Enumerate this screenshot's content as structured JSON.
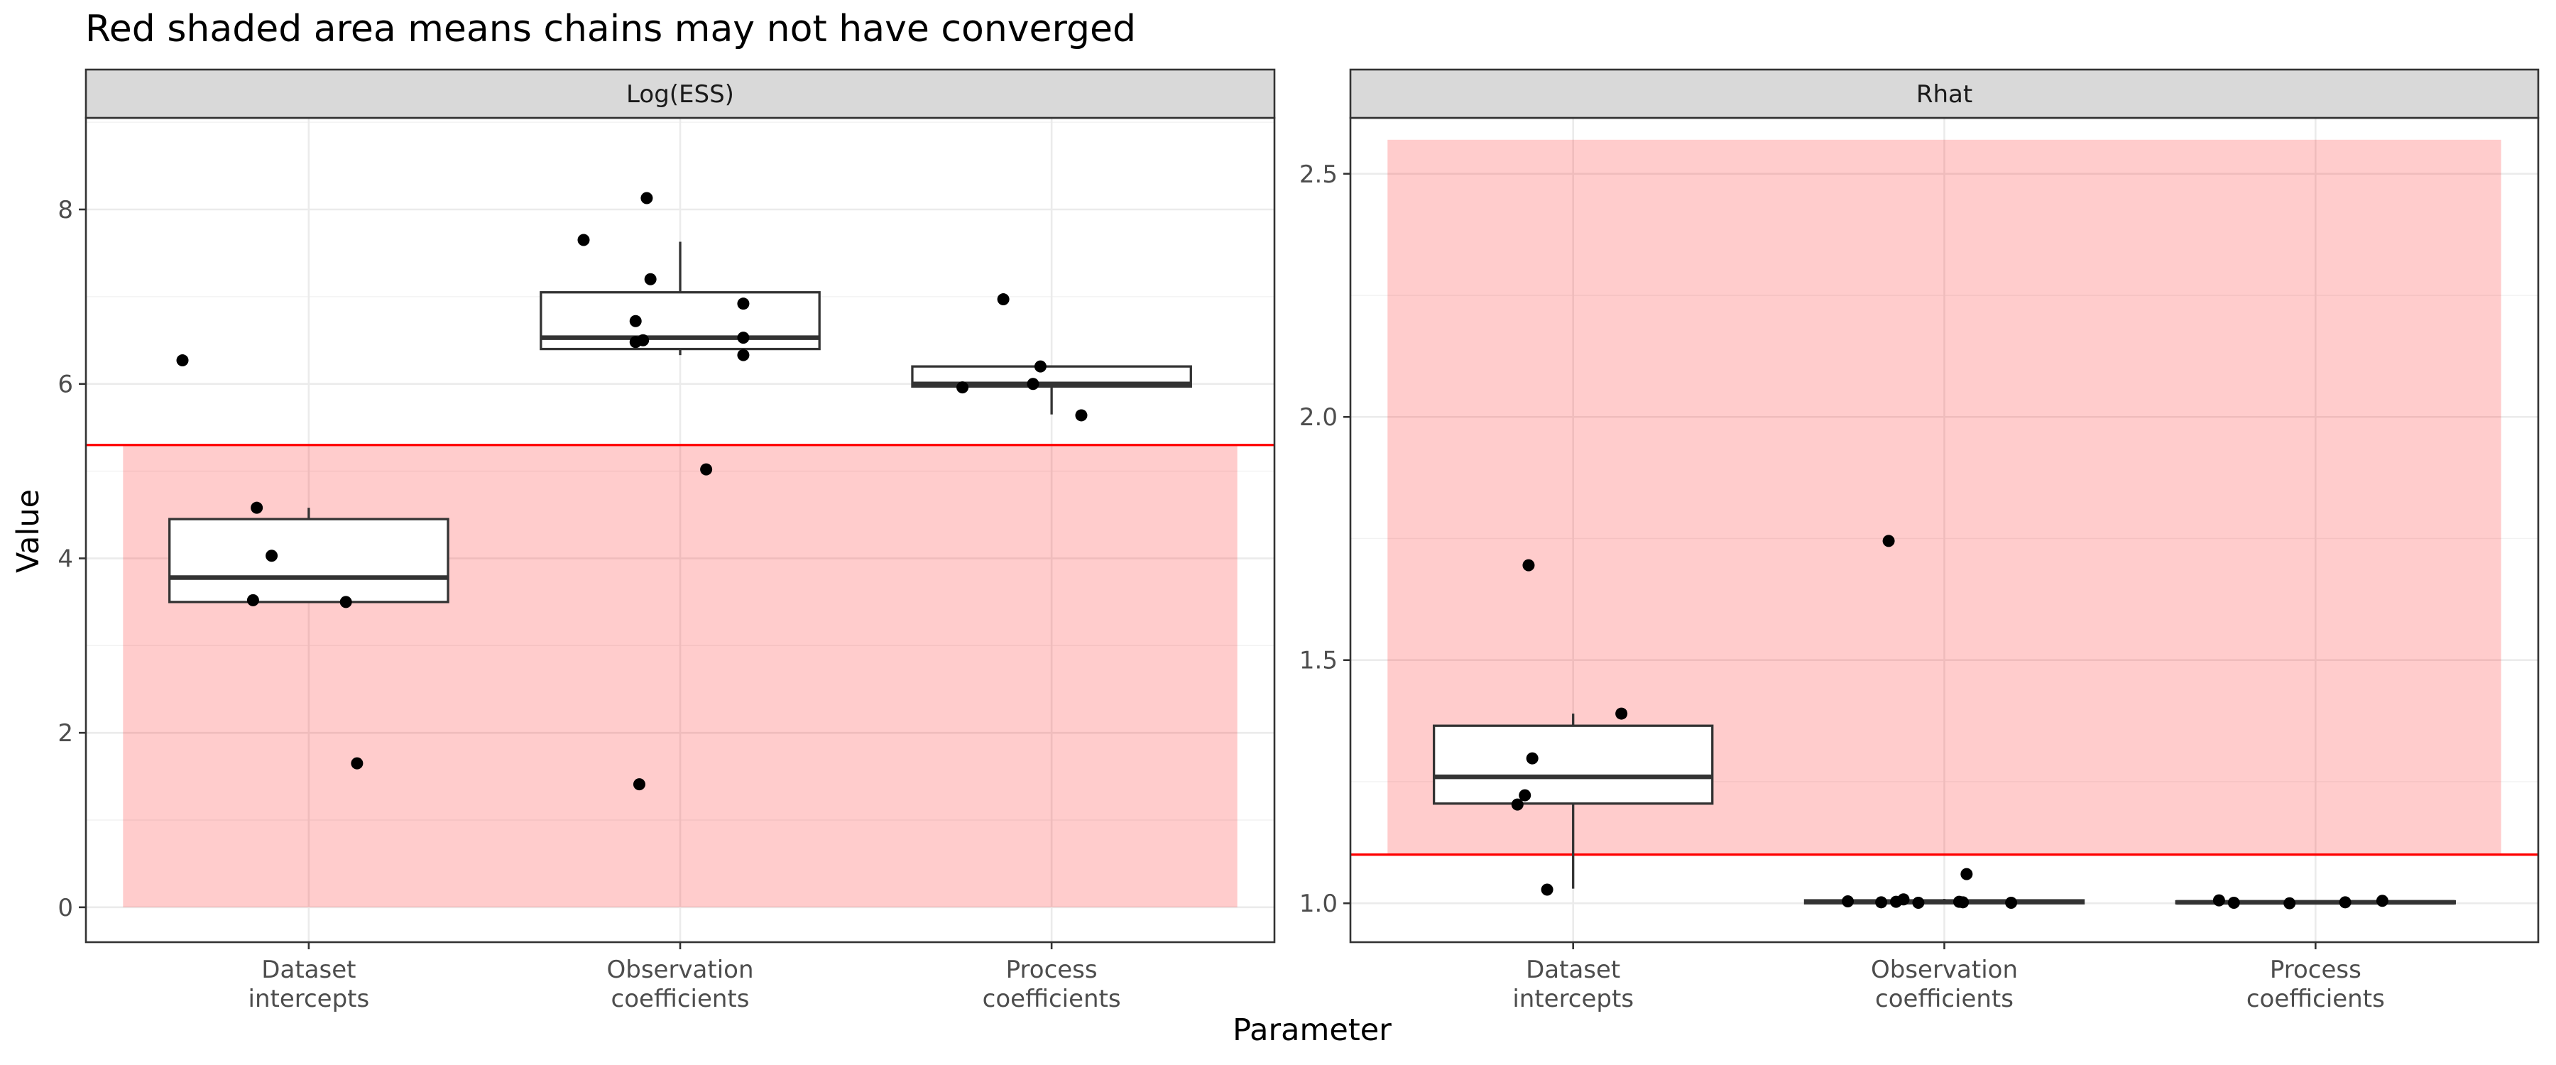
{
  "title": "Red shaded area means chains may not have converged",
  "colors": {
    "shade": "#ff0000",
    "threshold": "#ff0000",
    "strip_bg": "#d9d9d9",
    "grid": "#ebebeb"
  },
  "chart_data": {
    "type": "box",
    "title": "Red shaded area means chains may not have converged",
    "xlabel": "Parameter",
    "ylabel": "Value",
    "categories": [
      [
        "Dataset",
        "intercepts"
      ],
      [
        "Observation",
        "coefficients"
      ],
      [
        "Process",
        "coefficients"
      ]
    ],
    "facets": [
      {
        "name": "Log(ESS)",
        "ylim": [
          -0.4,
          9.05
        ],
        "yticks": [
          0,
          2,
          4,
          6,
          8
        ],
        "ytick_labels": [
          "0",
          "2",
          "4",
          "6",
          "8"
        ],
        "threshold": 5.3,
        "shade": {
          "ymin": 0,
          "ymax": 5.3
        },
        "boxes": [
          {
            "category": "Dataset intercepts",
            "q1": 3.5,
            "median": 3.78,
            "q3": 4.45,
            "whisker_low": 3.5,
            "whisker_high": 4.58
          },
          {
            "category": "Observation coefficients",
            "q1": 6.4,
            "median": 6.53,
            "q3": 7.05,
            "whisker_low": 6.33,
            "whisker_high": 7.63
          },
          {
            "category": "Process coefficients",
            "q1": 5.97,
            "median": 6.0,
            "q3": 6.2,
            "whisker_low": 5.65,
            "whisker_high": 6.2
          }
        ],
        "points": [
          {
            "x": 0.66,
            "y": 6.27
          },
          {
            "x": 0.86,
            "y": 4.58
          },
          {
            "x": 0.9,
            "y": 4.03
          },
          {
            "x": 0.85,
            "y": 3.52
          },
          {
            "x": 1.1,
            "y": 3.5
          },
          {
            "x": 1.13,
            "y": 1.65
          },
          {
            "x": 1.74,
            "y": 7.65
          },
          {
            "x": 1.91,
            "y": 8.13
          },
          {
            "x": 1.92,
            "y": 7.2
          },
          {
            "x": 1.88,
            "y": 6.72
          },
          {
            "x": 1.88,
            "y": 6.48
          },
          {
            "x": 1.9,
            "y": 6.5
          },
          {
            "x": 2.17,
            "y": 6.92
          },
          {
            "x": 2.17,
            "y": 6.53
          },
          {
            "x": 2.17,
            "y": 6.33
          },
          {
            "x": 2.07,
            "y": 5.02
          },
          {
            "x": 1.89,
            "y": 1.41
          },
          {
            "x": 2.87,
            "y": 6.97
          },
          {
            "x": 2.97,
            "y": 6.2
          },
          {
            "x": 2.95,
            "y": 6.0
          },
          {
            "x": 2.76,
            "y": 5.96
          },
          {
            "x": 3.08,
            "y": 5.64
          }
        ]
      },
      {
        "name": "Rhat",
        "ylim": [
          0.92,
          2.615
        ],
        "yticks": [
          1.0,
          1.5,
          2.0,
          2.5
        ],
        "ytick_labels": [
          "1.0",
          "1.5",
          "2.0",
          "2.5"
        ],
        "threshold": 1.1,
        "shade": {
          "ymin": 1.1,
          "ymax": 2.57
        },
        "boxes": [
          {
            "category": "Dataset intercepts",
            "q1": 1.205,
            "median": 1.26,
            "q3": 1.365,
            "whisker_low": 1.03,
            "whisker_high": 1.39
          },
          {
            "category": "Observation coefficients",
            "q1": 1.0,
            "median": 1.003,
            "q3": 1.006,
            "whisker_low": 1.0,
            "whisker_high": 1.009
          },
          {
            "category": "Process coefficients",
            "q1": 1.0,
            "median": 1.002,
            "q3": 1.004,
            "whisker_low": 1.0,
            "whisker_high": 1.006
          }
        ],
        "points": [
          {
            "x": 0.88,
            "y": 1.695
          },
          {
            "x": 1.13,
            "y": 1.39
          },
          {
            "x": 0.89,
            "y": 1.298
          },
          {
            "x": 0.87,
            "y": 1.222
          },
          {
            "x": 0.85,
            "y": 1.203
          },
          {
            "x": 0.93,
            "y": 1.028
          },
          {
            "x": 1.85,
            "y": 1.745
          },
          {
            "x": 2.06,
            "y": 1.06
          },
          {
            "x": 1.74,
            "y": 1.004
          },
          {
            "x": 1.83,
            "y": 1.002
          },
          {
            "x": 1.87,
            "y": 1.003
          },
          {
            "x": 1.89,
            "y": 1.008
          },
          {
            "x": 1.93,
            "y": 1.001
          },
          {
            "x": 2.04,
            "y": 1.003
          },
          {
            "x": 2.05,
            "y": 1.002
          },
          {
            "x": 2.18,
            "y": 1.001
          },
          {
            "x": 2.74,
            "y": 1.006
          },
          {
            "x": 2.78,
            "y": 1.001
          },
          {
            "x": 2.93,
            "y": 1.0
          },
          {
            "x": 3.08,
            "y": 1.002
          },
          {
            "x": 3.18,
            "y": 1.005
          }
        ]
      }
    ]
  }
}
